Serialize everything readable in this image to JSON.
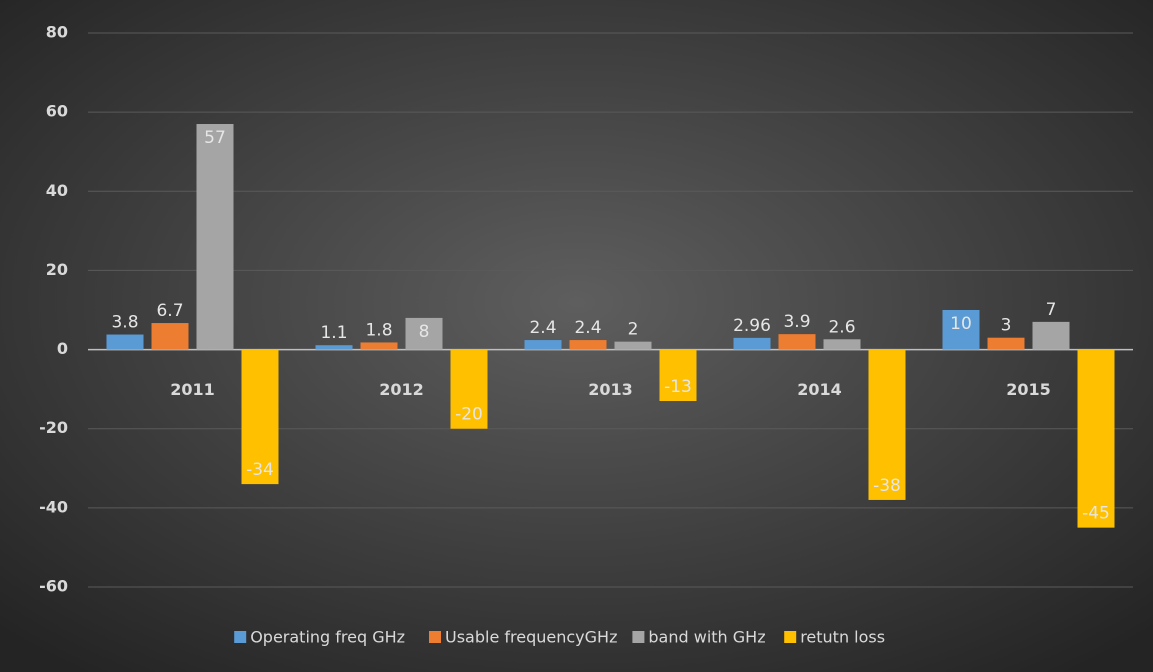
{
  "chart_data": {
    "type": "bar",
    "categories": [
      "2011",
      "2012",
      "2013",
      "2014",
      "2015"
    ],
    "series": [
      {
        "name": "Operating freq GHz",
        "color": "#5b9bd5",
        "values": [
          3.8,
          1.1,
          2.4,
          2.96,
          10
        ]
      },
      {
        "name": "Usable frequencyGHz",
        "color": "#ed7d31",
        "values": [
          6.7,
          1.8,
          2.4,
          3.9,
          3
        ]
      },
      {
        "name": "band with GHz",
        "color": "#a5a5a5",
        "values": [
          57,
          8,
          2,
          2.6,
          7
        ]
      },
      {
        "name": "retutn loss",
        "color": "#ffc000",
        "values": [
          -34,
          -20,
          -13,
          -38,
          -45
        ]
      }
    ],
    "ylim": [
      -60,
      80
    ],
    "yticks": [
      -60,
      -40,
      -20,
      0,
      20,
      40,
      60,
      80
    ],
    "grid": true,
    "legend": "bottom"
  }
}
